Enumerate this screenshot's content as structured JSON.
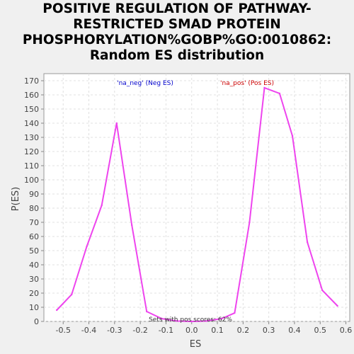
{
  "chart_data": {
    "type": "line",
    "title_lines": [
      "POSITIVE REGULATION OF PATHWAY-",
      "RESTRICTED SMAD PROTEIN",
      "PHOSPHORYLATION%GOBP%GO:0010862:",
      "Random ES distribution"
    ],
    "xlabel": "ES",
    "ylabel": "P(ES)",
    "xlim": [
      -0.575,
      0.615
    ],
    "ylim": [
      0,
      175
    ],
    "xticks": [
      -0.5,
      -0.4,
      -0.3,
      -0.2,
      -0.1,
      0.0,
      0.1,
      0.2,
      0.3,
      0.4,
      0.5,
      0.6
    ],
    "xtick_labels": [
      "-0.5",
      "-0.4",
      "-0.3",
      "-0.2",
      "-0.1",
      "0.0",
      "0.1",
      "0.2",
      "0.3",
      "0.4",
      "0.5",
      "0.6"
    ],
    "yticks": [
      0,
      10,
      20,
      30,
      40,
      50,
      60,
      70,
      80,
      90,
      100,
      110,
      120,
      130,
      140,
      150,
      160,
      170
    ],
    "grid": true,
    "series": [
      {
        "color": "#ee44ee",
        "x": [
          -0.525,
          -0.467,
          -0.408,
          -0.35,
          -0.292,
          -0.233,
          -0.175,
          -0.117,
          -0.058,
          0.0,
          0.058,
          0.117,
          0.167,
          0.225,
          0.283,
          0.342,
          0.392,
          0.45,
          0.508,
          0.567
        ],
        "values": [
          8,
          19,
          53,
          82,
          140,
          68,
          7,
          2,
          0.3,
          0,
          0.3,
          2,
          6,
          70,
          165,
          161,
          131,
          56,
          22,
          11
        ]
      }
    ],
    "annotations": {
      "neg": "'na_neg' (Neg ES)",
      "pos": "'na_pos' (Pos ES)",
      "pos_scores": "Sets with pos scores: 62%"
    },
    "colors": {
      "neg": "#0000cc",
      "pos": "#cc0000",
      "line": "#ee44ee"
    }
  }
}
